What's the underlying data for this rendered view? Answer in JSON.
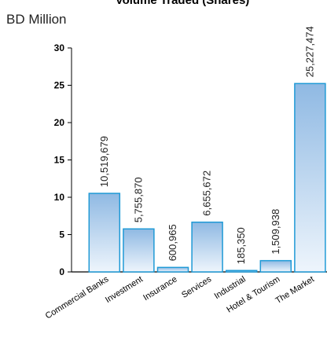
{
  "chart_data": {
    "type": "bar",
    "title": "Volume Traded (Shares)",
    "ylabel": "BD Million",
    "ylim": [
      0,
      30
    ],
    "yticks": [
      0,
      5,
      10,
      15,
      20,
      25,
      30
    ],
    "grid": false,
    "categories": [
      "Commercial Banks",
      "Investment",
      "Insurance",
      "Services",
      "Industrial",
      "Hotel & Tourism",
      "The Market"
    ],
    "values": [
      10.52,
      5.76,
      0.6,
      6.66,
      0.19,
      1.51,
      25.23
    ],
    "data_labels": [
      "10,519,679",
      "5,755,870",
      "600,965",
      "6,655,672",
      "185,350",
      "1,509,938",
      "25,227,474"
    ],
    "colors": {
      "bar_top": "#8fb9e3",
      "bar_bottom": "#eef5fc",
      "bar_edge": "#1f9ad6",
      "axis": "#000000"
    }
  }
}
